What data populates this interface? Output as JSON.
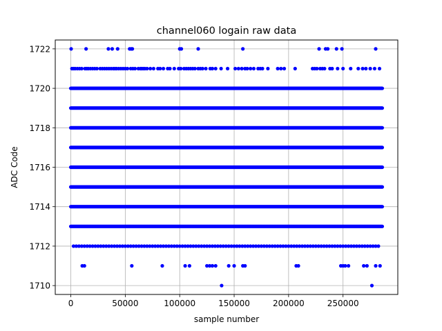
{
  "chart_data": {
    "type": "scatter",
    "title": "channel060 logain raw data",
    "xlabel": "sample number",
    "ylabel": "ADC Code",
    "xlim": [
      -14300,
      300300
    ],
    "ylim": [
      1709.55,
      1722.45
    ],
    "xticks": [
      0,
      50000,
      100000,
      150000,
      200000,
      250000
    ],
    "xtick_labels": [
      "0",
      "50000",
      "100000",
      "150000",
      "200000",
      "250000"
    ],
    "yticks": [
      1710,
      1712,
      1714,
      1716,
      1718,
      1720,
      1722
    ],
    "ytick_labels": [
      "1710",
      "1712",
      "1714",
      "1716",
      "1718",
      "1720",
      "1722"
    ],
    "grid": true,
    "marker_color": "#0000ff",
    "series": [
      {
        "dense_levels": [
          1713,
          1714,
          1715,
          1716,
          1717,
          1718,
          1719,
          1720
        ],
        "dense_x_range": [
          0,
          286000
        ],
        "points": [
          {
            "y": 1722,
            "x": [
              300,
              14000,
              34500,
              38000,
              43000,
              54000,
              55500,
              56500,
              100000,
              101500,
              117000,
              158000,
              228000,
              234000,
              236000,
              244000,
              249000,
              280000
            ]
          },
          {
            "y": 1721,
            "x": [
              1000,
              2500,
              4000,
              6000,
              8000,
              10000,
              13000,
              14500,
              16000,
              18000,
              20000,
              22000,
              24000,
              27000,
              29000,
              31000,
              33000,
              35000,
              37000,
              39000,
              40500,
              42000,
              44000,
              46000,
              48000,
              50000,
              52000,
              55000,
              57000,
              59000,
              62000,
              64000,
              65000,
              66500,
              68000,
              70000,
              73000,
              76000,
              80000,
              82000,
              85000,
              89000,
              91000,
              95000,
              99000,
              101000,
              104000,
              106000,
              108000,
              110000,
              112000,
              114000,
              117000,
              119000,
              121000,
              124000,
              128000,
              130000,
              133000,
              138000,
              144000,
              151000,
              154000,
              157000,
              160000,
              162000,
              165000,
              168000,
              172000,
              174000,
              176000,
              181000,
              190000,
              193000,
              196000,
              206000,
              222000,
              224000,
              226000,
              229000,
              231000,
              233000,
              238000,
              240000,
              245000,
              250000,
              257000,
              264000,
              268000,
              271000,
              275000,
              279000,
              283500
            ]
          },
          {
            "y": 1712,
            "x": [
              2500,
              5000,
              7500,
              10000,
              12500,
              15000,
              17500,
              20000,
              22500,
              25000,
              27500,
              30000,
              32500,
              35000,
              37500,
              40000,
              42500,
              45000,
              47500,
              50000,
              52500,
              55000,
              57500,
              60000,
              62500,
              65000,
              67500,
              70000,
              72500,
              75000,
              77500,
              80000,
              82500,
              85000,
              87500,
              90000,
              92500,
              95000,
              97500,
              100000,
              102500,
              105000,
              107500,
              110000,
              112500,
              115000,
              117500,
              120000,
              122500,
              125000,
              127500,
              130000,
              132500,
              135000,
              137500,
              140000,
              142500,
              145000,
              147500,
              150000,
              152500,
              155000,
              157500,
              160000,
              162500,
              165000,
              167500,
              170000,
              172500,
              175000,
              177500,
              180000,
              182500,
              185000,
              187500,
              190000,
              192500,
              195000,
              197500,
              200000,
              202500,
              205000,
              207500,
              210000,
              212500,
              215000,
              217500,
              220000,
              222500,
              225000,
              227500,
              230000,
              232500,
              235000,
              237500,
              240000,
              242500,
              245000,
              247500,
              250000,
              252500,
              255000,
              257500,
              260000,
              262500,
              265000,
              267500,
              270000,
              272500,
              275000,
              277500,
              280000,
              282500
            ]
          },
          {
            "y": 1711,
            "x": [
              10500,
              12500,
              56000,
              84000,
              105000,
              109000,
              125000,
              127500,
              130000,
              133000,
              145000,
              150000,
              158000,
              160000,
              207000,
              209000,
              248000,
              250000,
              252000,
              255000,
              269000,
              272000,
              280000,
              284000
            ]
          },
          {
            "y": 1710,
            "x": [
              138500,
              276500
            ]
          }
        ]
      }
    ]
  }
}
